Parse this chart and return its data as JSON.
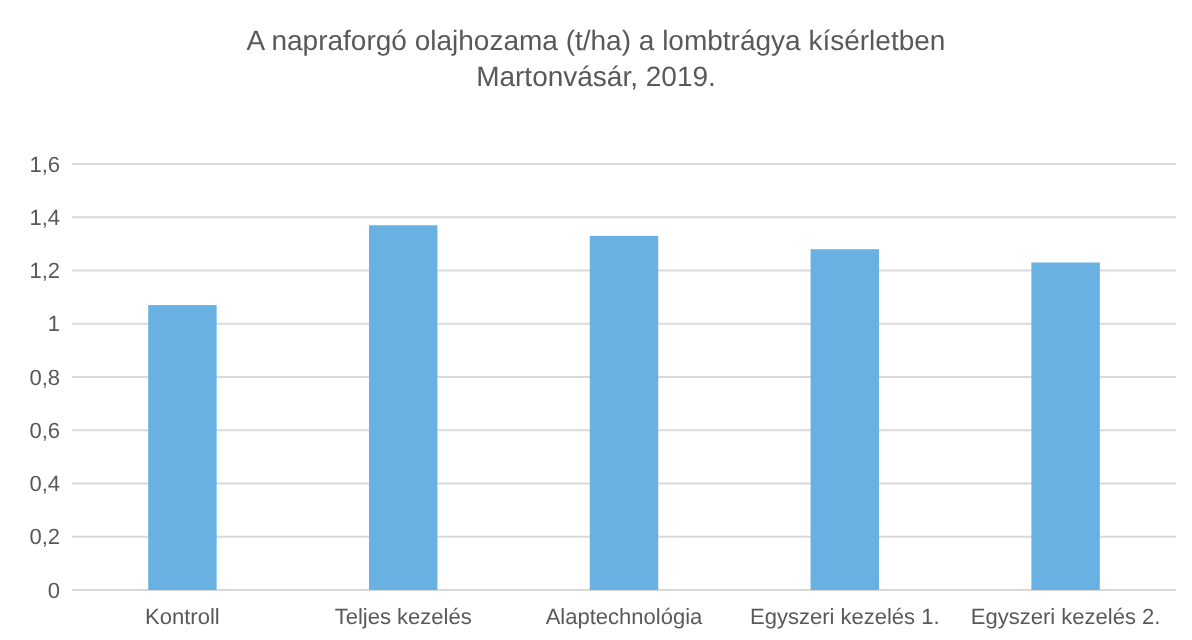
{
  "chart_data": {
    "type": "bar",
    "title": "A napraforgó olajhozama (t/ha) a lombtrágya kísérletben",
    "subtitle": "Martonvásár, 2019.",
    "categories": [
      "Kontroll",
      "Teljes kezelés",
      "Alaptechnológia",
      "Egyszeri kezelés 1.",
      "Egyszeri kezelés 2."
    ],
    "values": [
      1.07,
      1.37,
      1.33,
      1.28,
      1.23
    ],
    "color": "#69b1e3",
    "ylim": [
      0,
      1.6
    ],
    "yticks": [
      {
        "value": 0,
        "label": "0"
      },
      {
        "value": 0.2,
        "label": "0,2"
      },
      {
        "value": 0.4,
        "label": "0,4"
      },
      {
        "value": 0.6,
        "label": "0,6"
      },
      {
        "value": 0.8,
        "label": "0,8"
      },
      {
        "value": 1,
        "label": "1"
      },
      {
        "value": 1.2,
        "label": "1,2"
      },
      {
        "value": 1.4,
        "label": "1,4"
      },
      {
        "value": 1.6,
        "label": "1,6"
      }
    ],
    "grid": "y"
  }
}
